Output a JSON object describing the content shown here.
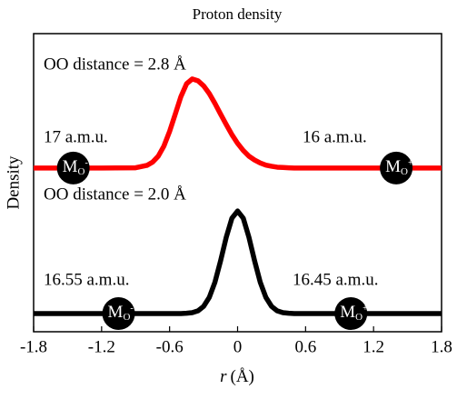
{
  "chart_data": {
    "type": "line",
    "title": "Proton density",
    "x_label": {
      "symbol": "r",
      "unit": "(Å)"
    },
    "y_label": "Density",
    "x": [
      -1.8,
      -1.5,
      -1.2,
      -0.9,
      -0.8,
      -0.75,
      -0.7,
      -0.65,
      -0.6,
      -0.55,
      -0.5,
      -0.45,
      -0.4,
      -0.35,
      -0.3,
      -0.25,
      -0.2,
      -0.15,
      -0.1,
      -0.05,
      0,
      0.05,
      0.1,
      0.15,
      0.2,
      0.25,
      0.3,
      0.35,
      0.4,
      0.45,
      0.5,
      0.6,
      0.8,
      1.0,
      1.2,
      1.5,
      1.8
    ],
    "series": [
      {
        "name": "OO distance = 2.8 Å",
        "color": "#ff0000",
        "values": [
          0.549,
          0.549,
          0.549,
          0.55,
          0.558,
          0.569,
          0.589,
          0.623,
          0.672,
          0.73,
          0.789,
          0.832,
          0.848,
          0.842,
          0.825,
          0.799,
          0.766,
          0.73,
          0.695,
          0.661,
          0.632,
          0.608,
          0.589,
          0.576,
          0.566,
          0.559,
          0.555,
          0.552,
          0.551,
          0.55,
          0.549,
          0.549,
          0.549,
          0.549,
          0.549,
          0.549,
          0.549
        ],
        "markers": [
          {
            "x": -1.45,
            "base": "M",
            "sub": "O",
            "sup": "-"
          },
          {
            "x": 1.4,
            "base": "M",
            "sub": "O",
            "sup": "+"
          }
        ],
        "annotations": [
          "17 a.m.u.",
          "16 a.m.u."
        ]
      },
      {
        "name": "OO distance = 2.0 Å",
        "color": "#000000",
        "values": [
          0.061,
          0.061,
          0.061,
          0.061,
          0.061,
          0.061,
          0.061,
          0.061,
          0.061,
          0.061,
          0.061,
          0.062,
          0.064,
          0.07,
          0.085,
          0.115,
          0.166,
          0.238,
          0.317,
          0.381,
          0.405,
          0.381,
          0.317,
          0.238,
          0.166,
          0.115,
          0.085,
          0.07,
          0.064,
          0.062,
          0.061,
          0.061,
          0.061,
          0.061,
          0.061,
          0.061,
          0.061
        ],
        "markers": [
          {
            "x": -1.05,
            "base": "M",
            "sub": "O",
            "sup": "-"
          },
          {
            "x": 1.0,
            "base": "M",
            "sub": "O",
            "sup": "+"
          }
        ],
        "annotations": [
          "16.55 a.m.u.",
          "16.45 a.m.u."
        ]
      }
    ],
    "xlim": [
      -1.8,
      1.8
    ],
    "xticks": [
      -1.8,
      -1.2,
      -0.6,
      0,
      0.6,
      1.2,
      1.8
    ],
    "ylim": [
      0,
      1
    ]
  }
}
